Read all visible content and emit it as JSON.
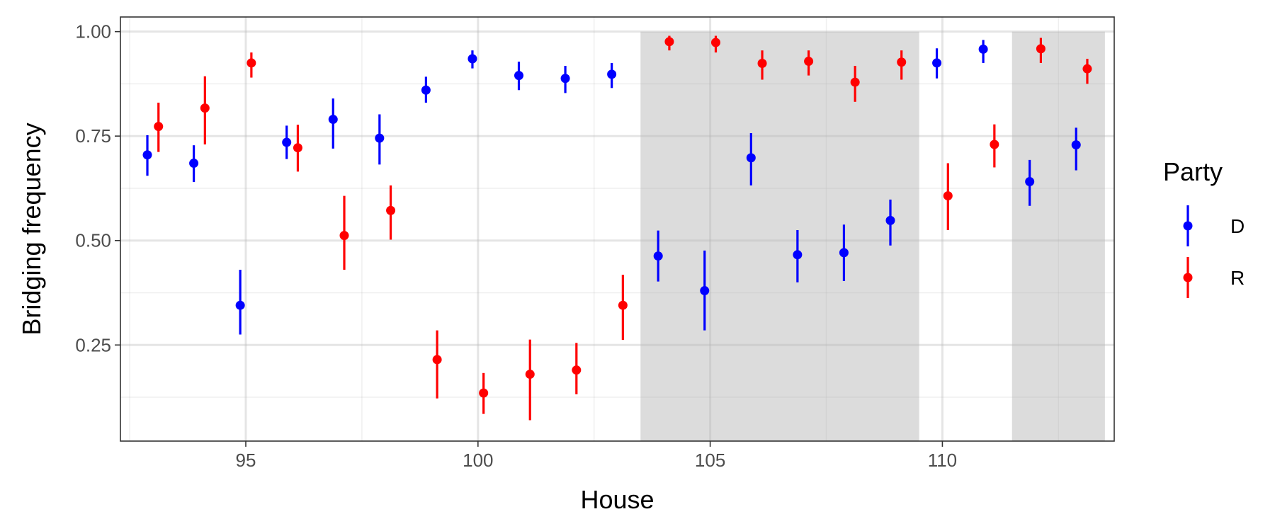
{
  "chart_data": {
    "type": "scatter",
    "title": "",
    "xlabel": "House",
    "ylabel": "Bridging frequency",
    "xlim": [
      92.3,
      113.7
    ],
    "ylim": [
      0.02,
      1.035
    ],
    "x_ticks": [
      95,
      100,
      105,
      110
    ],
    "x_tick_labels": [
      "95",
      "100",
      "105",
      "110"
    ],
    "y_ticks": [
      0.25,
      0.5,
      0.75,
      1.0
    ],
    "y_tick_labels": [
      "0.25",
      "0.50",
      "0.75",
      "1.00"
    ],
    "grid": true,
    "legend": {
      "title": "Party",
      "position": "right"
    },
    "shaded_ranges": [
      [
        103.5,
        109.5
      ],
      [
        111.5,
        113.5
      ]
    ],
    "colors": {
      "D": "#0000ff",
      "R": "#ff0000",
      "shade": "#dcdcdc"
    },
    "series": [
      {
        "name": "D",
        "x": [
          93,
          94,
          95,
          96,
          97,
          98,
          99,
          100,
          101,
          102,
          103,
          104,
          105,
          106,
          107,
          108,
          109,
          110,
          111,
          112,
          113
        ],
        "y": [
          0.705,
          0.685,
          0.345,
          0.735,
          0.79,
          0.745,
          0.86,
          0.935,
          0.895,
          0.888,
          0.898,
          0.463,
          0.38,
          0.698,
          0.466,
          0.471,
          0.548,
          0.925,
          0.958,
          0.641,
          0.729
        ],
        "lower": [
          0.655,
          0.64,
          0.275,
          0.695,
          0.72,
          0.682,
          0.83,
          0.912,
          0.86,
          0.853,
          0.865,
          0.402,
          0.285,
          0.632,
          0.4,
          0.403,
          0.488,
          0.888,
          0.925,
          0.583,
          0.668
        ],
        "upper": [
          0.752,
          0.728,
          0.43,
          0.775,
          0.84,
          0.802,
          0.892,
          0.955,
          0.928,
          0.918,
          0.925,
          0.524,
          0.476,
          0.757,
          0.525,
          0.538,
          0.598,
          0.96,
          0.98,
          0.693,
          0.77
        ]
      },
      {
        "name": "R",
        "x": [
          93,
          94,
          95,
          96,
          97,
          98,
          99,
          100,
          101,
          102,
          103,
          104,
          105,
          106,
          107,
          108,
          109,
          110,
          111,
          112,
          113
        ],
        "y": [
          0.773,
          0.817,
          0.925,
          0.722,
          0.512,
          0.572,
          0.215,
          0.135,
          0.18,
          0.19,
          0.345,
          0.976,
          0.974,
          0.924,
          0.929,
          0.879,
          0.927,
          0.607,
          0.73,
          0.959,
          0.911
        ],
        "lower": [
          0.712,
          0.73,
          0.89,
          0.665,
          0.43,
          0.502,
          0.122,
          0.085,
          0.07,
          0.132,
          0.262,
          0.955,
          0.95,
          0.885,
          0.895,
          0.832,
          0.885,
          0.525,
          0.675,
          0.925,
          0.875
        ],
        "upper": [
          0.83,
          0.893,
          0.95,
          0.777,
          0.607,
          0.632,
          0.285,
          0.183,
          0.263,
          0.255,
          0.418,
          0.99,
          0.99,
          0.955,
          0.955,
          0.918,
          0.955,
          0.685,
          0.778,
          0.985,
          0.935
        ]
      }
    ]
  }
}
